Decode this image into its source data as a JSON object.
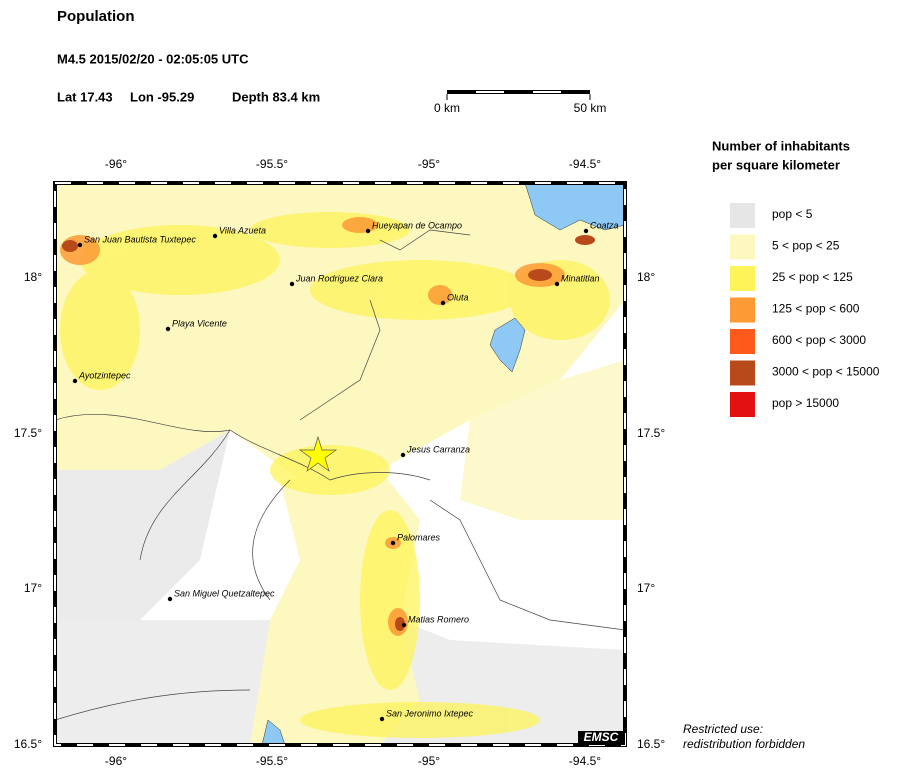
{
  "header": {
    "title": "Population",
    "event": "M4.5  2015/02/20 - 02:05:05 UTC",
    "lat": "Lat 17.43",
    "lon": "Lon -95.29",
    "depth": "Depth  83.4 km"
  },
  "scale_bar": {
    "start": "0 km",
    "end": "50 km"
  },
  "map": {
    "lon_ticks": [
      "-96°",
      "-95.5°",
      "-95°",
      "-94.5°"
    ],
    "lat_ticks": [
      "18°",
      "17.5°",
      "17°",
      "16.5°"
    ],
    "cities": [
      "San Juan Bautista Tuxtepec",
      "Villa Azueta",
      "Hueyapan de Ocampo",
      "Coatza",
      "Juan Rodriguez Clara",
      "Minatitlan",
      "Oluta",
      "Playa Vicente",
      "Ayotzintepec",
      "Jesus Carranza",
      "Palomares",
      "San Miguel Quetzaltepec",
      "Matias Romero",
      "San Jeronimo Ixtepec"
    ],
    "credit": "EMSC"
  },
  "legend": {
    "title": [
      "Number of inhabitants",
      "per square kilometer"
    ],
    "items": [
      {
        "label": "pop < 5",
        "color": "#e6e6e6"
      },
      {
        "label": "5 < pop < 25",
        "color": "#fdf7c0"
      },
      {
        "label": "25 < pop < 125",
        "color": "#fdf45a"
      },
      {
        "label": "125 < pop < 600",
        "color": "#fd9a35"
      },
      {
        "label": "600 < pop < 3000",
        "color": "#fd5a1c"
      },
      {
        "label": "3000 < pop < 15000",
        "color": "#b7491b"
      },
      {
        "label": "pop > 15000",
        "color": "#e31111"
      }
    ]
  },
  "note": [
    "Restricted use:",
    "redistribution forbidden"
  ]
}
